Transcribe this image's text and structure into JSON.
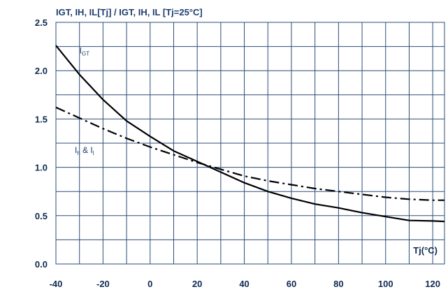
{
  "chart_data": {
    "type": "line",
    "title": "IGT, IH, IL[Tj] / IGT, IH, IL [Tj=25°C]",
    "xlabel": "Tj(°C)",
    "ylabel": "",
    "xlim": [
      -40,
      125
    ],
    "ylim": [
      0,
      2.5
    ],
    "x_ticks": [
      -40,
      -20,
      0,
      20,
      40,
      60,
      80,
      100,
      120
    ],
    "x_tick_labels": [
      "-40",
      "-20",
      "0",
      "20",
      "40",
      "60",
      "80",
      "100",
      "120"
    ],
    "y_ticks": [
      0,
      0.5,
      1.0,
      1.5,
      2.0,
      2.5
    ],
    "y_tick_labels": [
      "0.0",
      "0.5",
      "1.0",
      "1.5",
      "2.0",
      "2.5"
    ],
    "grid": true,
    "series": [
      {
        "name": "IGT",
        "style": "solid",
        "color": "#000000",
        "x": [
          -40,
          -30,
          -20,
          -10,
          0,
          10,
          20,
          30,
          40,
          50,
          60,
          70,
          80,
          90,
          100,
          110,
          120,
          125
        ],
        "y": [
          2.26,
          1.96,
          1.7,
          1.48,
          1.32,
          1.17,
          1.06,
          0.95,
          0.84,
          0.75,
          0.68,
          0.62,
          0.58,
          0.53,
          0.49,
          0.45,
          0.445,
          0.44
        ]
      },
      {
        "name": "Ih & Il",
        "style": "dashdot",
        "color": "#000000",
        "x": [
          -40,
          -30,
          -20,
          -10,
          0,
          10,
          20,
          30,
          40,
          50,
          60,
          70,
          80,
          90,
          100,
          110,
          120,
          125
        ],
        "y": [
          1.62,
          1.51,
          1.4,
          1.3,
          1.21,
          1.13,
          1.05,
          0.98,
          0.91,
          0.86,
          0.82,
          0.78,
          0.75,
          0.72,
          0.69,
          0.67,
          0.66,
          0.66
        ]
      }
    ],
    "annotations": [
      {
        "main": "I",
        "sub": "GT",
        "x": -30,
        "y": 2.18
      },
      {
        "main": "I",
        "sub": "h",
        "rest": " & I",
        "sub2": "l",
        "x": -32,
        "y": 1.15
      }
    ],
    "colors": {
      "grid": "#2b4d7a",
      "text": "#0f2a52",
      "line": "#000000"
    }
  }
}
